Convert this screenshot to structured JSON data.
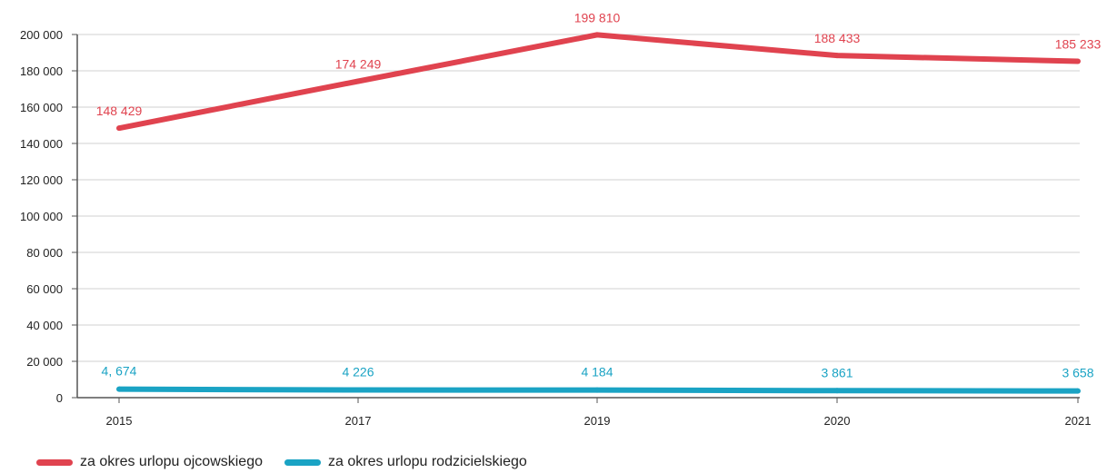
{
  "chart_data": {
    "type": "line",
    "categories": [
      "2015",
      "2017",
      "2019",
      "2020",
      "2021"
    ],
    "ylim": [
      0,
      200000
    ],
    "yticks": [
      0,
      20000,
      40000,
      60000,
      80000,
      100000,
      120000,
      140000,
      160000,
      180000,
      200000
    ],
    "ytick_labels": [
      "0",
      "20 000",
      "40 000",
      "60 000",
      "80 000",
      "100 000",
      "120 000",
      "140 000",
      "160 000",
      "180 000",
      "200 000"
    ],
    "grid": true,
    "legend_position": "bottom-left",
    "series": [
      {
        "name": "za okres urlopu ojcowskiego",
        "color": "#e0434f",
        "values": [
          148429,
          174249,
          199810,
          188433,
          185233
        ],
        "labels": [
          "148 429",
          "174 249",
          "199 810",
          "188 433",
          "185 233"
        ]
      },
      {
        "name": "za okres urlopu rodzicielskiego",
        "color": "#1aa3c4",
        "values": [
          4674,
          4226,
          4184,
          3861,
          3658
        ],
        "labels": [
          "4, 674",
          "4 226",
          "4 184",
          "3 861",
          "3 658"
        ]
      }
    ]
  }
}
